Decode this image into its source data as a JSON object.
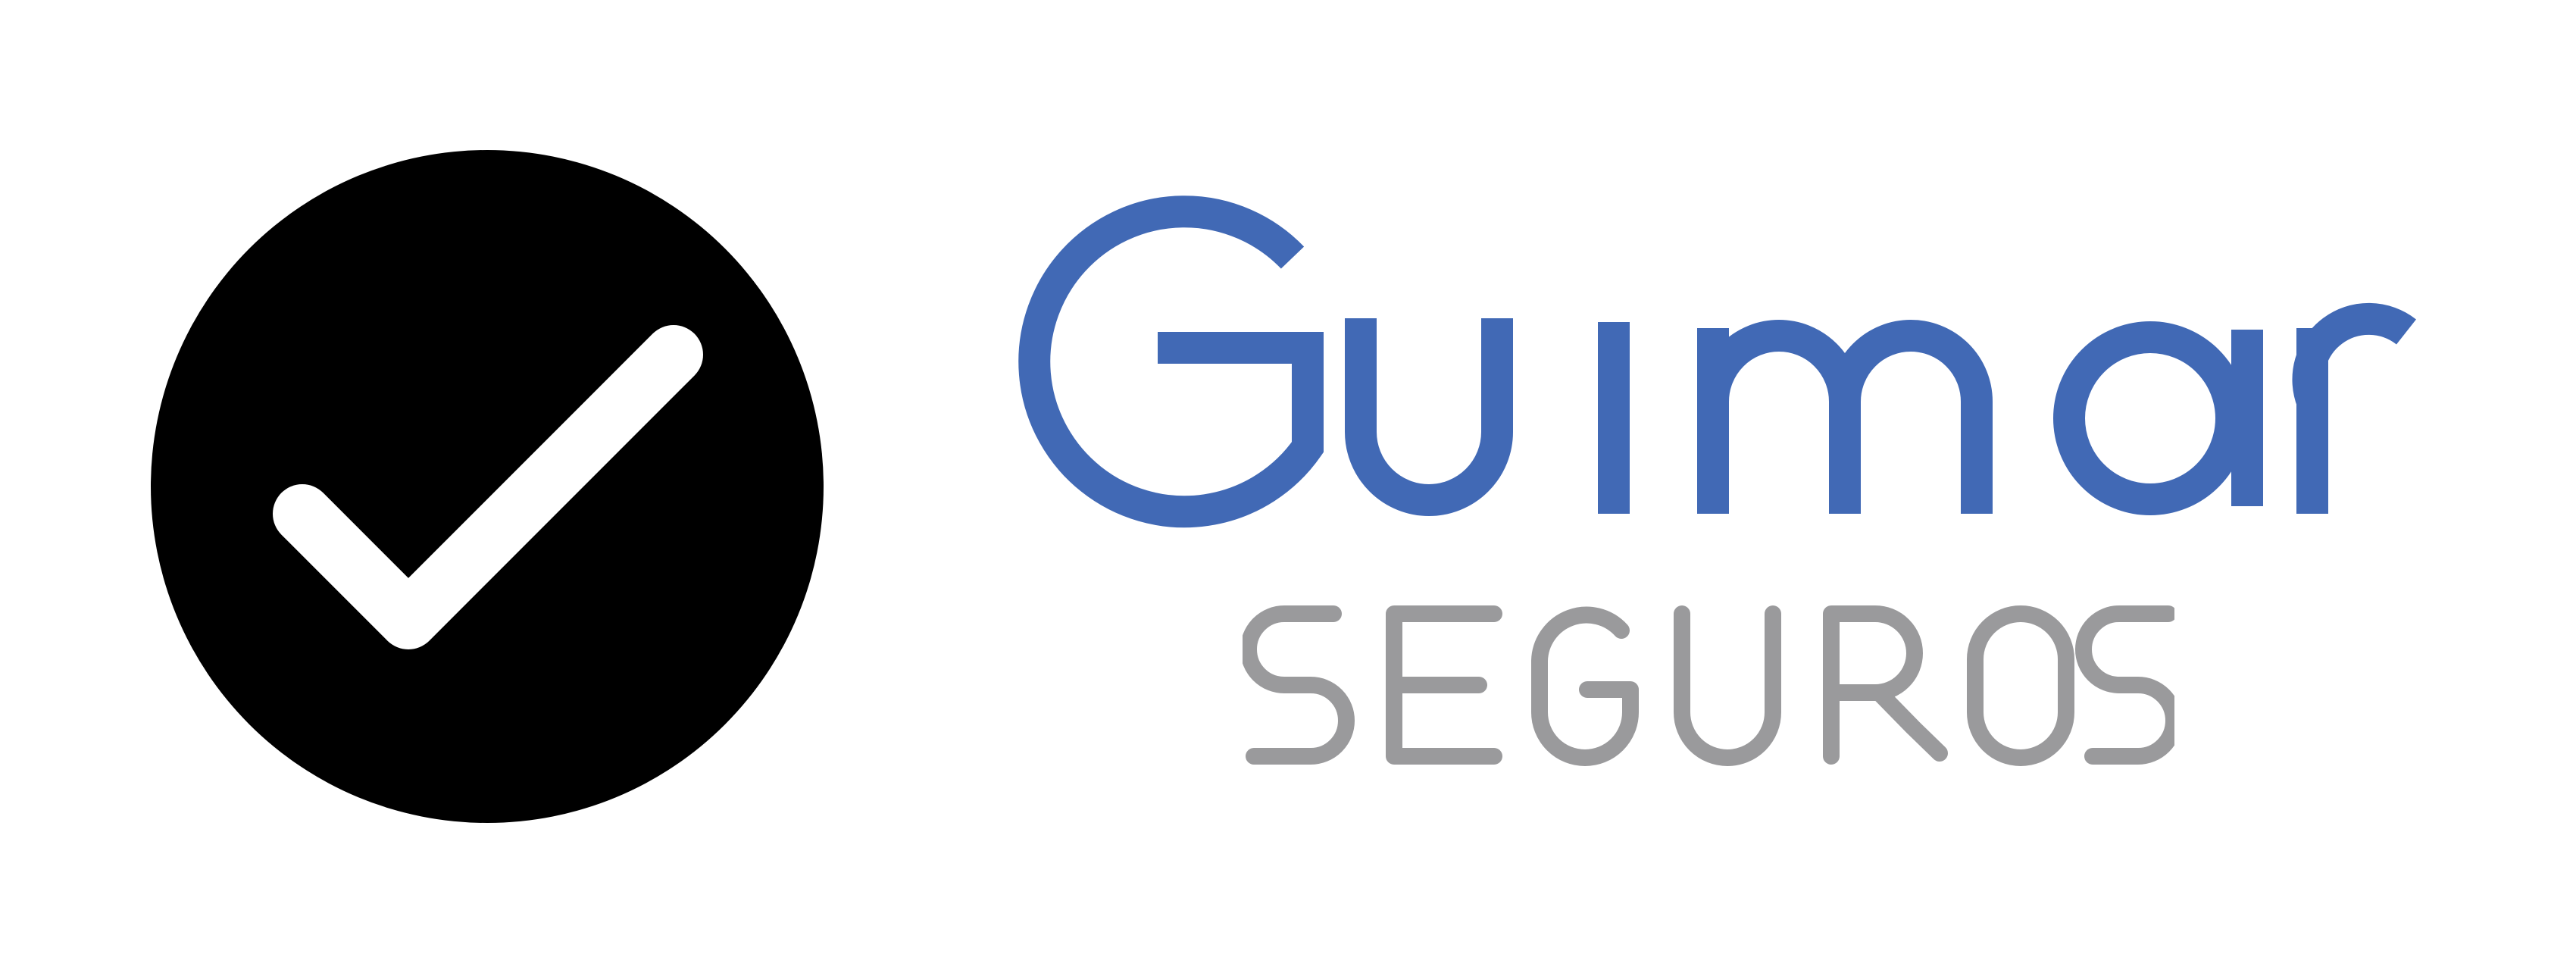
{
  "logo": {
    "brand_name": "Guimar",
    "tagline": "SEGUROS",
    "badge_icon": "check-circle-icon",
    "colors": {
      "brand_blue": "#4169b5",
      "tagline_gray": "#9a9a9c",
      "badge_black": "#000000",
      "check_white": "#ffffff",
      "background": "#ffffff"
    }
  }
}
